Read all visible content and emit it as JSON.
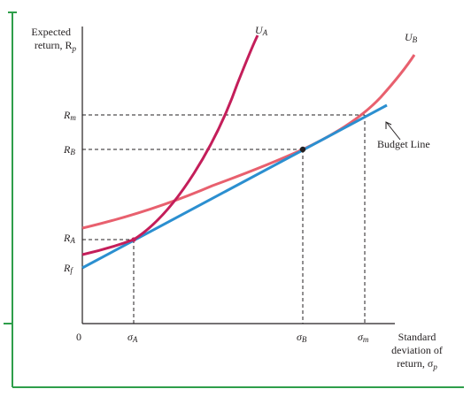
{
  "colors": {
    "frame": "#2e9e4a",
    "axis": "#231f20",
    "curve_a": "#c41e5a",
    "curve_b": "#e8606e",
    "budget_line": "#2b8fd0",
    "guide": "#231f20",
    "text": "#231f20"
  },
  "y_axis": {
    "label_line1": "Expected",
    "label_line2": "return, R",
    "label_sub": "p"
  },
  "x_axis": {
    "origin": "0",
    "label_line1": "Standard",
    "label_line2": "deviation of",
    "label_line3": "return, σ",
    "label_sub": "p"
  },
  "y_ticks": [
    {
      "main": "R",
      "sub": "m"
    },
    {
      "main": "R",
      "sub": "B"
    },
    {
      "main": "R",
      "sub": "A"
    },
    {
      "main": "R",
      "sub": "f"
    }
  ],
  "x_ticks": [
    {
      "main": "σ",
      "sub": "A"
    },
    {
      "main": "σ",
      "sub": "B"
    },
    {
      "main": "σ",
      "sub": "m"
    }
  ],
  "curves": {
    "u_a": {
      "main": "U",
      "sub": "A"
    },
    "u_b": {
      "main": "U",
      "sub": "B"
    }
  },
  "annotation": {
    "budget_line_label": "Budget Line"
  }
}
